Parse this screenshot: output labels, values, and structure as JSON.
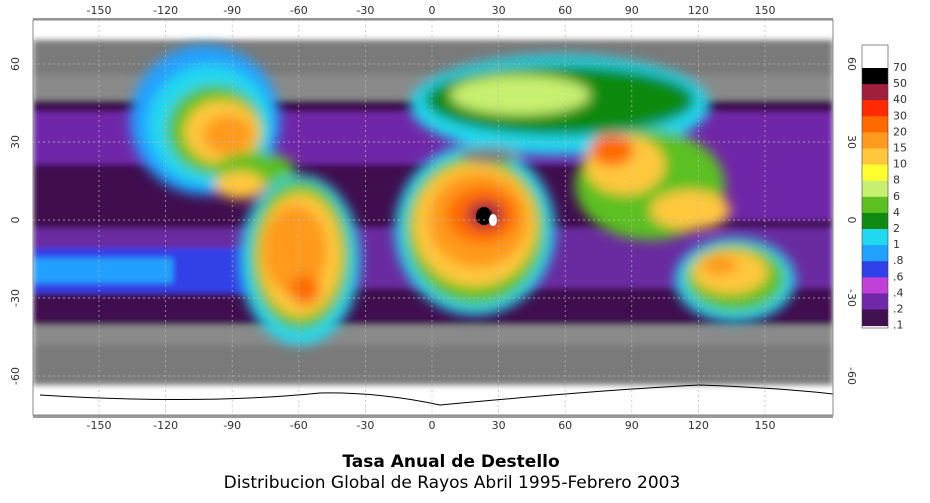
{
  "map": {
    "lon_ticks": [
      "-150",
      "-120",
      "-90",
      "-60",
      "-30",
      "0",
      "30",
      "60",
      "90",
      "120",
      "150"
    ],
    "lat_ticks": [
      "60",
      "30",
      "0",
      "-30",
      "-60"
    ],
    "colorbar": [
      {
        "label": "70",
        "color": "#ffffff"
      },
      {
        "label": "50",
        "color": "#000000"
      },
      {
        "label": "40",
        "color": "#a0203c"
      },
      {
        "label": "30",
        "color": "#ff2a00"
      },
      {
        "label": "20",
        "color": "#ff6a00"
      },
      {
        "label": "15",
        "color": "#ff9a1e"
      },
      {
        "label": "10",
        "color": "#ffc83c"
      },
      {
        "label": "8",
        "color": "#ffff30"
      },
      {
        "label": "6",
        "color": "#c8f070"
      },
      {
        "label": "4",
        "color": "#5cc020"
      },
      {
        "label": "2",
        "color": "#108a10"
      },
      {
        "label": "1",
        "color": "#20d8f0"
      },
      {
        "label": ".8",
        "color": "#20a0ff"
      },
      {
        "label": ".6",
        "color": "#3040e8"
      },
      {
        "label": ".4",
        "color": "#c040d8"
      },
      {
        "label": ".2",
        "color": "#7028a8"
      },
      {
        "label": ".1",
        "color": "#401050"
      }
    ]
  },
  "title": "Tasa Anual de Destello",
  "subtitle": "Distribucion Global de Rayos Abril 1995-Febrero 2003"
}
